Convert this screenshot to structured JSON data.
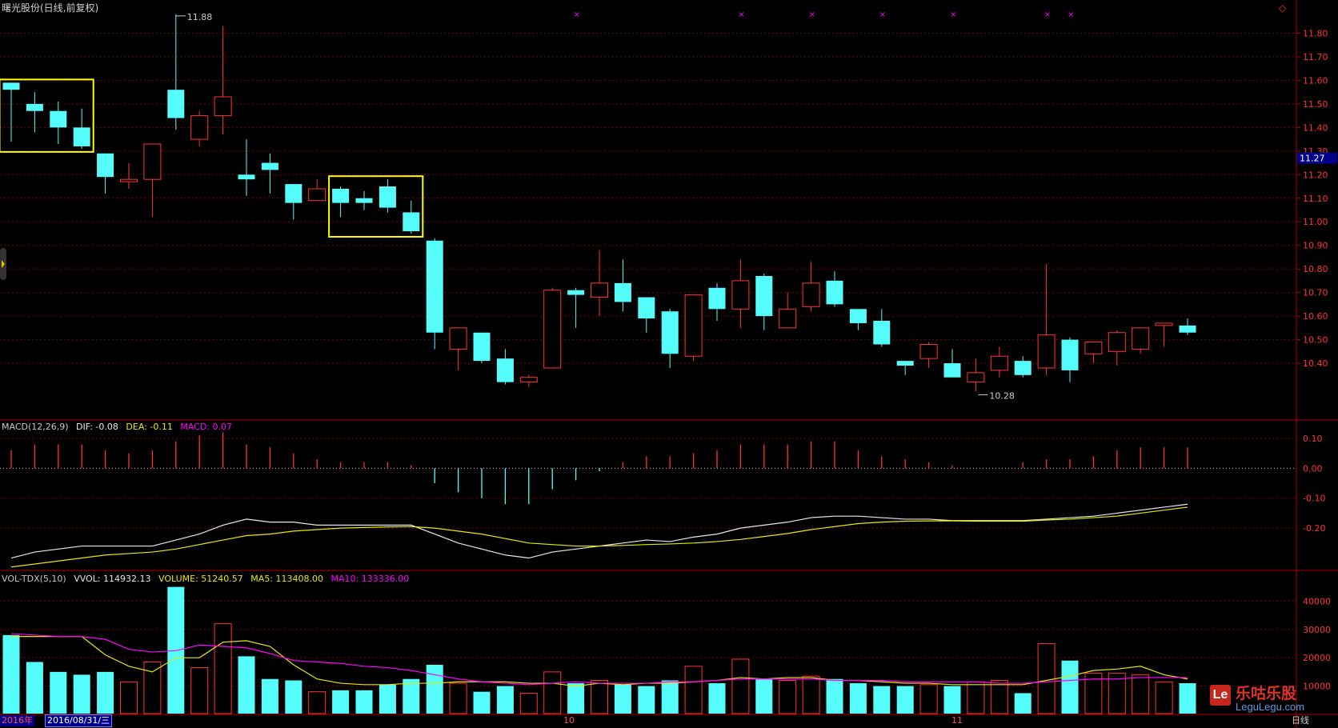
{
  "title": "曙光股份(日线,前复权)",
  "price_tag": "11.27",
  "period_label": "日线",
  "macd_legend": {
    "name": "MACD(12,26,9)",
    "dif": "DIF: -0.08",
    "dea": "DEA: -0.11",
    "macd": "MACD: 0.07"
  },
  "vol_legend": {
    "name": "VOL-TDX(5,10)",
    "vvol": "VVOL: 114932.13",
    "volume": "VOLUME: 51240.57",
    "ma5": "MA5: 113408.00",
    "ma10": "MA10: 133336.00"
  },
  "date_bar": {
    "year": "2016年",
    "date": "2016/08/31/三",
    "months": [
      "10",
      "11"
    ]
  },
  "annotations": {
    "high": "11.88",
    "low": "10.28"
  },
  "logo": {
    "cn": "乐咕乐股",
    "en": "LeguLegu.com",
    "mark": "Le"
  },
  "colors": {
    "up": "#ff3232",
    "down": "#54fcfc",
    "dif": "#e8e8e8",
    "dea": "#e8e800",
    "ma10": "#ff00ff",
    "highlight": "#ffff00"
  },
  "chart_data": [
    {
      "type": "candlestick",
      "title": "曙光股份(日线,前复权)",
      "ylim": [
        10.2,
        11.9
      ],
      "yticks": [
        "11.80",
        "11.70",
        "11.60",
        "11.50",
        "11.40",
        "11.30",
        "11.20",
        "11.10",
        "11.00",
        "10.90",
        "10.80",
        "10.70",
        "10.60",
        "10.50",
        "10.40"
      ],
      "candles": [
        {
          "o": 11.59,
          "h": 11.59,
          "l": 11.34,
          "c": 11.56
        },
        {
          "o": 11.5,
          "h": 11.55,
          "l": 11.38,
          "c": 11.47
        },
        {
          "o": 11.47,
          "h": 11.51,
          "l": 11.33,
          "c": 11.4
        },
        {
          "o": 11.4,
          "h": 11.48,
          "l": 11.31,
          "c": 11.32
        },
        {
          "o": 11.29,
          "h": 11.29,
          "l": 11.12,
          "c": 11.19
        },
        {
          "o": 11.17,
          "h": 11.25,
          "l": 11.14,
          "c": 11.18
        },
        {
          "o": 11.18,
          "h": 11.33,
          "l": 11.02,
          "c": 11.33
        },
        {
          "o": 11.56,
          "h": 11.88,
          "l": 11.39,
          "c": 11.44
        },
        {
          "o": 11.35,
          "h": 11.47,
          "l": 11.32,
          "c": 11.45
        },
        {
          "o": 11.45,
          "h": 11.83,
          "l": 11.37,
          "c": 11.53
        },
        {
          "o": 11.2,
          "h": 11.35,
          "l": 11.11,
          "c": 11.18
        },
        {
          "o": 11.25,
          "h": 11.29,
          "l": 11.12,
          "c": 11.22
        },
        {
          "o": 11.16,
          "h": 11.16,
          "l": 11.01,
          "c": 11.08
        },
        {
          "o": 11.09,
          "h": 11.18,
          "l": 11.09,
          "c": 11.14
        },
        {
          "o": 11.14,
          "h": 11.15,
          "l": 11.02,
          "c": 11.08
        },
        {
          "o": 11.1,
          "h": 11.13,
          "l": 11.05,
          "c": 11.08
        },
        {
          "o": 11.15,
          "h": 11.18,
          "l": 11.04,
          "c": 11.06
        },
        {
          "o": 11.04,
          "h": 11.09,
          "l": 10.95,
          "c": 10.96
        },
        {
          "o": 10.92,
          "h": 10.93,
          "l": 10.46,
          "c": 10.53
        },
        {
          "o": 10.46,
          "h": 10.55,
          "l": 10.37,
          "c": 10.55
        },
        {
          "o": 10.53,
          "h": 10.53,
          "l": 10.4,
          "c": 10.41
        },
        {
          "o": 10.42,
          "h": 10.46,
          "l": 10.31,
          "c": 10.32
        },
        {
          "o": 10.32,
          "h": 10.35,
          "l": 10.3,
          "c": 10.34
        },
        {
          "o": 10.38,
          "h": 10.72,
          "l": 10.38,
          "c": 10.71
        },
        {
          "o": 10.71,
          "h": 10.72,
          "l": 10.55,
          "c": 10.69
        },
        {
          "o": 10.68,
          "h": 10.88,
          "l": 10.6,
          "c": 10.74
        },
        {
          "o": 10.74,
          "h": 10.84,
          "l": 10.62,
          "c": 10.66
        },
        {
          "o": 10.68,
          "h": 10.68,
          "l": 10.53,
          "c": 10.59
        },
        {
          "o": 10.62,
          "h": 10.63,
          "l": 10.38,
          "c": 10.44
        },
        {
          "o": 10.43,
          "h": 10.69,
          "l": 10.41,
          "c": 10.69
        },
        {
          "o": 10.72,
          "h": 10.74,
          "l": 10.58,
          "c": 10.63
        },
        {
          "o": 10.63,
          "h": 10.84,
          "l": 10.55,
          "c": 10.75
        },
        {
          "o": 10.77,
          "h": 10.78,
          "l": 10.54,
          "c": 10.6
        },
        {
          "o": 10.55,
          "h": 10.7,
          "l": 10.55,
          "c": 10.63
        },
        {
          "o": 10.64,
          "h": 10.83,
          "l": 10.62,
          "c": 10.74
        },
        {
          "o": 10.75,
          "h": 10.79,
          "l": 10.64,
          "c": 10.65
        },
        {
          "o": 10.63,
          "h": 10.63,
          "l": 10.54,
          "c": 10.57
        },
        {
          "o": 10.58,
          "h": 10.63,
          "l": 10.47,
          "c": 10.48
        },
        {
          "o": 10.41,
          "h": 10.41,
          "l": 10.35,
          "c": 10.39
        },
        {
          "o": 10.42,
          "h": 10.49,
          "l": 10.38,
          "c": 10.48
        },
        {
          "o": 10.4,
          "h": 10.46,
          "l": 10.34,
          "c": 10.34
        },
        {
          "o": 10.32,
          "h": 10.42,
          "l": 10.28,
          "c": 10.36
        },
        {
          "o": 10.37,
          "h": 10.47,
          "l": 10.34,
          "c": 10.43
        },
        {
          "o": 10.41,
          "h": 10.43,
          "l": 10.34,
          "c": 10.35
        },
        {
          "o": 10.38,
          "h": 10.82,
          "l": 10.35,
          "c": 10.52
        },
        {
          "o": 10.5,
          "h": 10.51,
          "l": 10.32,
          "c": 10.37
        },
        {
          "o": 10.44,
          "h": 10.49,
          "l": 10.4,
          "c": 10.49
        },
        {
          "o": 10.45,
          "h": 10.54,
          "l": 10.39,
          "c": 10.53
        },
        {
          "o": 10.46,
          "h": 10.55,
          "l": 10.44,
          "c": 10.55
        },
        {
          "o": 10.56,
          "h": 10.57,
          "l": 10.47,
          "c": 10.57
        },
        {
          "o": 10.56,
          "h": 10.59,
          "l": 10.52,
          "c": 10.53
        }
      ]
    },
    {
      "type": "line",
      "title": "MACD(12,26,9)",
      "ylim": [
        -0.32,
        0.14
      ],
      "yticks": [
        "0.10",
        "0.00",
        "-0.10",
        "-0.20"
      ],
      "series": [
        {
          "name": "DIF",
          "values": [
            -0.3,
            -0.28,
            -0.27,
            -0.26,
            -0.26,
            -0.26,
            -0.26,
            -0.24,
            -0.22,
            -0.19,
            -0.17,
            -0.18,
            -0.18,
            -0.19,
            -0.19,
            -0.19,
            -0.19,
            -0.19,
            -0.22,
            -0.25,
            -0.27,
            -0.29,
            -0.3,
            -0.28,
            -0.27,
            -0.26,
            -0.25,
            -0.24,
            -0.245,
            -0.23,
            -0.22,
            -0.2,
            -0.19,
            -0.18,
            -0.165,
            -0.16,
            -0.16,
            -0.165,
            -0.17,
            -0.17,
            -0.175,
            -0.175,
            -0.175,
            -0.175,
            -0.17,
            -0.165,
            -0.16,
            -0.15,
            -0.14,
            -0.13,
            -0.12
          ]
        },
        {
          "name": "DEA",
          "values": [
            -0.33,
            -0.32,
            -0.31,
            -0.3,
            -0.29,
            -0.285,
            -0.28,
            -0.27,
            -0.255,
            -0.24,
            -0.225,
            -0.22,
            -0.21,
            -0.205,
            -0.2,
            -0.198,
            -0.196,
            -0.195,
            -0.2,
            -0.21,
            -0.22,
            -0.235,
            -0.25,
            -0.255,
            -0.26,
            -0.26,
            -0.258,
            -0.255,
            -0.253,
            -0.25,
            -0.245,
            -0.238,
            -0.228,
            -0.218,
            -0.205,
            -0.195,
            -0.185,
            -0.18,
            -0.177,
            -0.176,
            -0.176,
            -0.177,
            -0.177,
            -0.177,
            -0.173,
            -0.17,
            -0.165,
            -0.16,
            -0.15,
            -0.14,
            -0.13
          ]
        },
        {
          "name": "MACD",
          "values": [
            0.06,
            0.08,
            0.08,
            0.08,
            0.06,
            0.05,
            0.06,
            0.09,
            0.11,
            0.12,
            0.08,
            0.07,
            0.05,
            0.03,
            0.02,
            0.02,
            0.02,
            0.01,
            -0.05,
            -0.08,
            -0.1,
            -0.12,
            -0.12,
            -0.07,
            -0.04,
            -0.01,
            0.02,
            0.04,
            0.04,
            0.05,
            0.06,
            0.08,
            0.08,
            0.08,
            0.09,
            0.09,
            0.06,
            0.04,
            0.03,
            0.02,
            0.01,
            0.0,
            0.0,
            0.02,
            0.03,
            0.03,
            0.04,
            0.06,
            0.07,
            0.07,
            0.07
          ]
        }
      ]
    },
    {
      "type": "bar",
      "title": "VOL-TDX(5,10)",
      "ylim": [
        0,
        48000
      ],
      "yticks": [
        "40000",
        "30000",
        "20000",
        "10000"
      ],
      "series": [
        {
          "name": "VOLUME",
          "values": [
            28000,
            18500,
            15000,
            14000,
            15000,
            11500,
            18500,
            45000,
            16500,
            32000,
            20500,
            12500,
            12000,
            8000,
            8500,
            8500,
            10500,
            12500,
            17500,
            11000,
            8000,
            10000,
            7500,
            15000,
            11000,
            12000,
            10500,
            10000,
            12000,
            17000,
            11000,
            19500,
            12500,
            12000,
            13500,
            12500,
            11000,
            10000,
            10000,
            10500,
            10000,
            11500,
            12000,
            7500,
            25000,
            19000,
            14500,
            14500,
            14000,
            11500,
            11000
          ]
        },
        {
          "name": "MA5",
          "values": [
            27500,
            27500,
            27500,
            27500,
            21000,
            17000,
            15000,
            20000,
            20000,
            25500,
            26000,
            24000,
            17500,
            12500,
            11000,
            10500,
            10500,
            11000,
            11000,
            11500,
            11500,
            11500,
            11000,
            11000,
            10000,
            11000,
            10500,
            11000,
            11000,
            11500,
            12000,
            13000,
            12500,
            13000,
            13000,
            12000,
            12000,
            11500,
            11000,
            11000,
            10500,
            10500,
            10500,
            10500,
            12000,
            13500,
            15500,
            16000,
            17000,
            14000,
            12500
          ]
        },
        {
          "name": "MA10",
          "values": [
            28500,
            28000,
            27500,
            27500,
            26500,
            23000,
            22000,
            22500,
            24500,
            24000,
            23500,
            21500,
            19000,
            18500,
            18000,
            17000,
            16500,
            15500,
            14000,
            12500,
            11500,
            11000,
            10500,
            11000,
            11500,
            11000,
            11000,
            11000,
            11500,
            11500,
            12000,
            12500,
            12500,
            12500,
            12500,
            12000,
            12000,
            12000,
            11500,
            11500,
            11500,
            11500,
            11000,
            11000,
            11500,
            12000,
            12500,
            12500,
            13000,
            13000,
            13000
          ]
        }
      ]
    }
  ]
}
